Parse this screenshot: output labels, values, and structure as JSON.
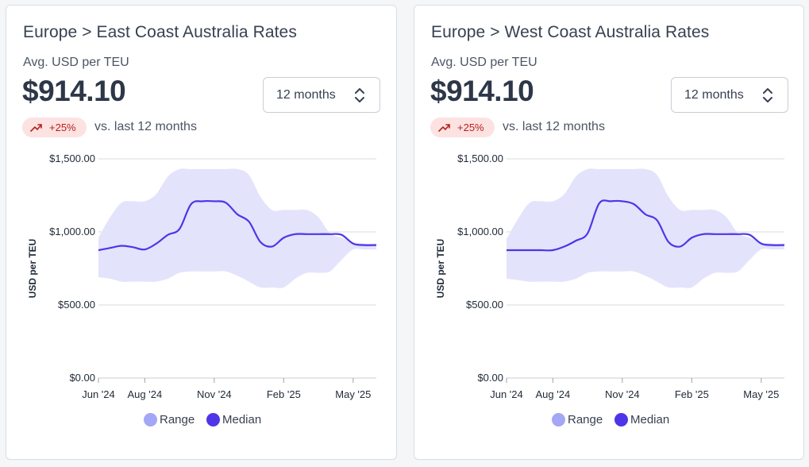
{
  "cards": [
    {
      "title": "Europe > East Coast Australia Rates",
      "subtitle": "Avg. USD per TEU",
      "price": "$914.10",
      "period_select": "12 months",
      "change_badge": "+25%",
      "comparison_text": "vs. last 12 months"
    },
    {
      "title": "Europe > West Coast Australia Rates",
      "subtitle": "Avg. USD per TEU",
      "price": "$914.10",
      "period_select": "12 months",
      "change_badge": "+25%",
      "comparison_text": "vs. last 12 months"
    }
  ],
  "legend": {
    "range": "Range",
    "median": "Median"
  },
  "colors": {
    "median_line": "#4f35e8",
    "range_fill": "#e3e3fc",
    "range_legend": "#a4a7f5",
    "median_legend": "#4f35e8",
    "badge_bg": "#fde2e2",
    "badge_text": "#b42318"
  },
  "chart_data": [
    {
      "type": "area",
      "ylabel": "USD per TEU",
      "ylim": [
        0,
        1500
      ],
      "y_ticks": [
        "$0.00",
        "$500.00",
        "$1,000.00",
        "$1,500.00"
      ],
      "y_tick_values": [
        0,
        500,
        1000,
        1500
      ],
      "x_ticks": [
        "Jun '24",
        "Aug '24",
        "Nov '24",
        "Feb '25",
        "May '25"
      ],
      "x_tick_positions": [
        0,
        2,
        5,
        8,
        11
      ],
      "x_max": 12,
      "grid": true,
      "legend_position": "bottom",
      "series": [
        {
          "name": "Range",
          "x": [
            0,
            0.5,
            1,
            1.5,
            2,
            2.5,
            3,
            3.5,
            4,
            4.5,
            5,
            5.5,
            6,
            6.5,
            7,
            7.5,
            8,
            8.5,
            9,
            9.5,
            10,
            10.5,
            11,
            11.5,
            12
          ],
          "low": [
            690,
            680,
            660,
            660,
            660,
            660,
            680,
            720,
            730,
            730,
            730,
            730,
            700,
            660,
            620,
            620,
            620,
            680,
            720,
            720,
            730,
            810,
            880,
            880,
            880
          ],
          "high": [
            960,
            1100,
            1200,
            1210,
            1210,
            1260,
            1380,
            1430,
            1430,
            1430,
            1430,
            1430,
            1430,
            1390,
            1240,
            1150,
            1150,
            1150,
            1150,
            1100,
            990,
            960,
            930,
            920,
            920
          ]
        },
        {
          "name": "Median",
          "x": [
            0,
            0.5,
            1,
            1.5,
            2,
            2.5,
            3,
            3.5,
            4,
            4.5,
            5,
            5.5,
            6,
            6.5,
            7,
            7.5,
            8,
            8.5,
            9,
            9.5,
            10,
            10.5,
            11,
            11.5,
            12
          ],
          "values": [
            875,
            890,
            905,
            895,
            880,
            920,
            980,
            1020,
            1190,
            1210,
            1210,
            1200,
            1120,
            1070,
            930,
            900,
            960,
            985,
            985,
            985,
            985,
            980,
            920,
            910,
            910
          ]
        }
      ]
    },
    {
      "type": "area",
      "ylabel": "USD per TEU",
      "ylim": [
        0,
        1500
      ],
      "y_ticks": [
        "$0.00",
        "$500.00",
        "$1,000.00",
        "$1,500.00"
      ],
      "y_tick_values": [
        0,
        500,
        1000,
        1500
      ],
      "x_ticks": [
        "Jun '24",
        "Aug '24",
        "Nov '24",
        "Feb '25",
        "May '25"
      ],
      "x_tick_positions": [
        0,
        2,
        5,
        8,
        11
      ],
      "x_max": 12,
      "grid": true,
      "legend_position": "bottom",
      "series": [
        {
          "name": "Range",
          "x": [
            0,
            0.5,
            1,
            1.5,
            2,
            2.5,
            3,
            3.5,
            4,
            4.5,
            5,
            5.5,
            6,
            6.5,
            7,
            7.5,
            8,
            8.5,
            9,
            9.5,
            10,
            10.5,
            11,
            11.5,
            12
          ],
          "low": [
            680,
            670,
            660,
            660,
            660,
            660,
            680,
            720,
            730,
            730,
            730,
            730,
            700,
            660,
            620,
            620,
            620,
            680,
            720,
            720,
            730,
            810,
            880,
            880,
            880
          ],
          "high": [
            950,
            1090,
            1200,
            1210,
            1210,
            1260,
            1380,
            1430,
            1430,
            1430,
            1430,
            1430,
            1430,
            1390,
            1240,
            1150,
            1150,
            1150,
            1150,
            1100,
            990,
            960,
            930,
            920,
            920
          ]
        },
        {
          "name": "Median",
          "x": [
            0,
            0.5,
            1,
            1.5,
            2,
            2.5,
            3,
            3.5,
            4,
            4.5,
            5,
            5.5,
            6,
            6.5,
            7,
            7.5,
            8,
            8.5,
            9,
            9.5,
            10,
            10.5,
            11,
            11.5,
            12
          ],
          "values": [
            875,
            875,
            875,
            875,
            875,
            900,
            940,
            990,
            1195,
            1210,
            1210,
            1190,
            1120,
            1080,
            930,
            900,
            960,
            985,
            985,
            985,
            985,
            980,
            920,
            910,
            910
          ]
        }
      ]
    }
  ]
}
